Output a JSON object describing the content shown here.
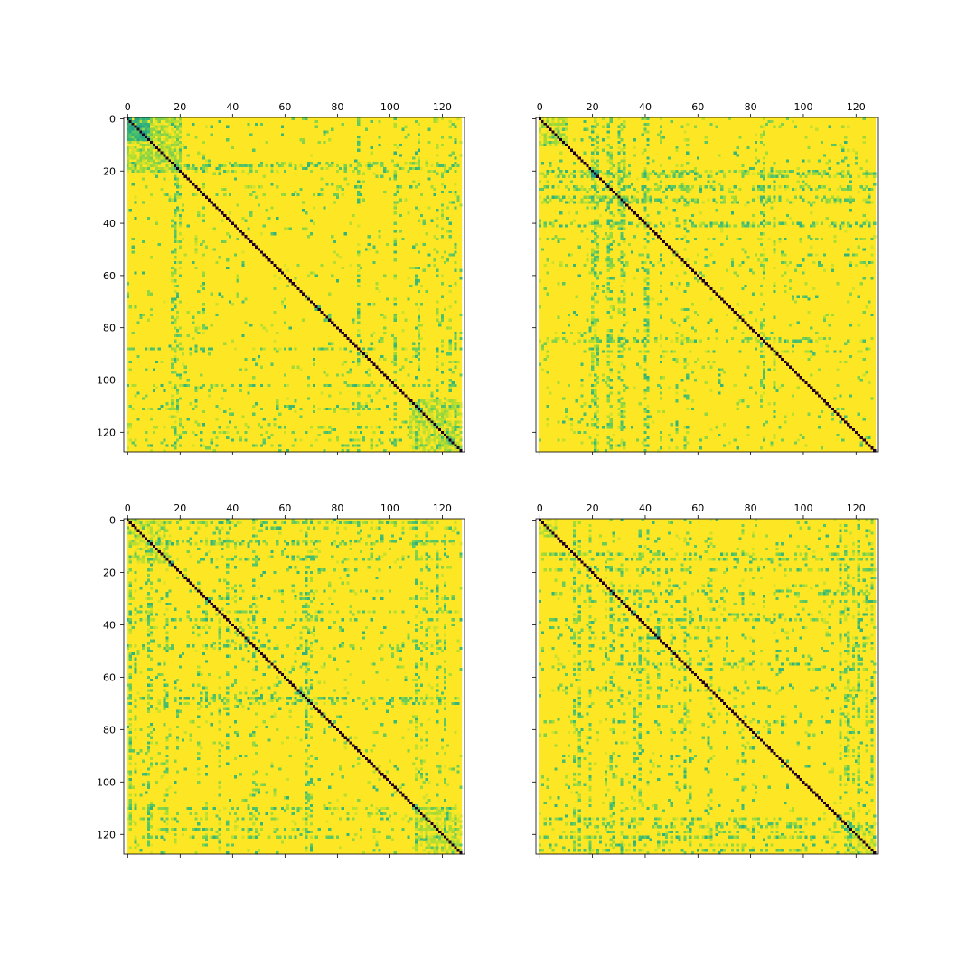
{
  "chart_data": [
    {
      "type": "heatmap",
      "panel": "top-left",
      "size": 128,
      "x_ticks": [
        0,
        20,
        40,
        60,
        80,
        100,
        120
      ],
      "y_ticks": [
        0,
        20,
        40,
        60,
        80,
        100,
        120
      ],
      "x_tick_labels": [
        "0",
        "20",
        "40",
        "60",
        "80",
        "100",
        "120"
      ],
      "y_tick_labels": [
        "0",
        "20",
        "40",
        "60",
        "80",
        "100",
        "120"
      ],
      "x_tick_position": "top",
      "y_tick_labels_visible": true,
      "xlim": [
        -0.5,
        127.5
      ],
      "ylim": [
        127.5,
        -0.5
      ],
      "colormap": "viridis",
      "value_range": [
        0,
        1
      ],
      "background_value": 1.0,
      "diagonal_value": 0.0,
      "blocks": [
        {
          "rows": [
            0,
            8
          ],
          "cols": [
            0,
            8
          ],
          "value": 0.55
        },
        {
          "rows": [
            0,
            20
          ],
          "cols": [
            0,
            20
          ],
          "value": 0.76
        },
        {
          "rows": [
            108,
            127
          ],
          "cols": [
            108,
            127
          ],
          "value": 0.8
        }
      ],
      "stripe_rows": [
        17,
        18,
        20,
        29,
        88,
        102,
        110,
        118,
        123
      ],
      "stripe_cols": [
        18,
        19,
        26,
        88,
        102,
        111,
        120,
        125
      ],
      "seed": 11
    },
    {
      "type": "heatmap",
      "panel": "top-right",
      "size": 128,
      "x_ticks": [
        0,
        20,
        40,
        60,
        80,
        100,
        120
      ],
      "y_ticks": [
        0,
        20,
        40,
        60,
        80,
        100,
        120
      ],
      "x_tick_labels": [
        "0",
        "20",
        "40",
        "60",
        "80",
        "100",
        "120"
      ],
      "y_tick_labels": [],
      "x_tick_position": "top",
      "y_tick_labels_visible": false,
      "xlim": [
        -0.5,
        127.5
      ],
      "ylim": [
        127.5,
        -0.5
      ],
      "colormap": "viridis",
      "value_range": [
        0,
        1
      ],
      "background_value": 1.0,
      "diagonal_value": 0.0,
      "blocks": [
        {
          "rows": [
            0,
            10
          ],
          "cols": [
            0,
            10
          ],
          "value": 0.82
        },
        {
          "rows": [
            20,
            22
          ],
          "cols": [
            20,
            22
          ],
          "value": 0.45
        }
      ],
      "stripe_rows": [
        20,
        21,
        22,
        26,
        27,
        31,
        32,
        40,
        41,
        55,
        84,
        85
      ],
      "stripe_cols": [
        20,
        21,
        22,
        26,
        27,
        30,
        31,
        32,
        40,
        41,
        46,
        52,
        56,
        85,
        89
      ],
      "seed": 23
    },
    {
      "type": "heatmap",
      "panel": "bottom-left",
      "size": 128,
      "x_ticks": [
        0,
        20,
        40,
        60,
        80,
        100,
        120
      ],
      "y_ticks": [
        0,
        20,
        40,
        60,
        80,
        100,
        120
      ],
      "x_tick_labels": [
        "0",
        "20",
        "40",
        "60",
        "80",
        "100",
        "120"
      ],
      "y_tick_labels": [
        "0",
        "20",
        "40",
        "60",
        "80",
        "100",
        "120"
      ],
      "x_tick_position": "top",
      "y_tick_labels_visible": true,
      "xlim": [
        -0.5,
        127.5
      ],
      "ylim": [
        127.5,
        -0.5
      ],
      "colormap": "viridis",
      "value_range": [
        0,
        1
      ],
      "background_value": 1.0,
      "diagonal_value": 0.0,
      "blocks": [
        {
          "rows": [
            0,
            16
          ],
          "cols": [
            0,
            16
          ],
          "value": 0.86
        },
        {
          "rows": [
            110,
            127
          ],
          "cols": [
            110,
            127
          ],
          "value": 0.82
        }
      ],
      "stripe_rows": [
        1,
        8,
        9,
        14,
        27,
        38,
        48,
        68,
        69,
        110,
        118,
        121
      ],
      "stripe_cols": [
        1,
        3,
        8,
        9,
        15,
        30,
        35,
        41,
        49,
        68,
        70,
        110,
        112,
        114
      ],
      "seed": 37
    },
    {
      "type": "heatmap",
      "panel": "bottom-right",
      "size": 128,
      "x_ticks": [
        0,
        20,
        40,
        60,
        80,
        100,
        120
      ],
      "y_ticks": [
        0,
        20,
        40,
        60,
        80,
        100,
        120
      ],
      "x_tick_labels": [
        "0",
        "20",
        "40",
        "60",
        "80",
        "100",
        "120"
      ],
      "y_tick_labels": [],
      "x_tick_position": "top",
      "y_tick_labels_visible": false,
      "xlim": [
        -0.5,
        127.5
      ],
      "ylim": [
        127.5,
        -0.5
      ],
      "colormap": "viridis",
      "value_range": [
        0,
        1
      ],
      "background_value": 1.0,
      "diagonal_value": 0.0,
      "blocks": [
        {
          "rows": [
            0,
            6
          ],
          "cols": [
            0,
            6
          ],
          "value": 0.84
        },
        {
          "rows": [
            118,
            127
          ],
          "cols": [
            118,
            127
          ],
          "value": 0.84
        }
      ],
      "stripe_rows": [
        13,
        15,
        19,
        28,
        38,
        41,
        50,
        57,
        65,
        114,
        117,
        119,
        121,
        124,
        126
      ],
      "stripe_cols": [
        13,
        15,
        19,
        25,
        27,
        31,
        36,
        38,
        45,
        55,
        64,
        77,
        81,
        116,
        121,
        126
      ],
      "seed": 51
    }
  ]
}
